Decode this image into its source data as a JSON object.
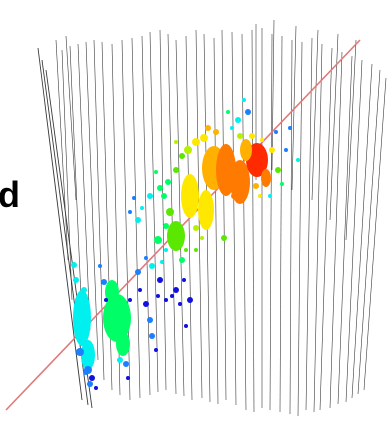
{
  "figure": {
    "visible_text": "d"
  },
  "colors": {
    "strings": "#3a3a3a",
    "track": "#e07a78",
    "background": "#ffffff",
    "palette": [
      "#ff2a00",
      "#ff7a00",
      "#ffb000",
      "#ffe800",
      "#b8f000",
      "#5ae800",
      "#00ff66",
      "#00f0f0",
      "#1a80ff",
      "#1010e0"
    ]
  }
}
